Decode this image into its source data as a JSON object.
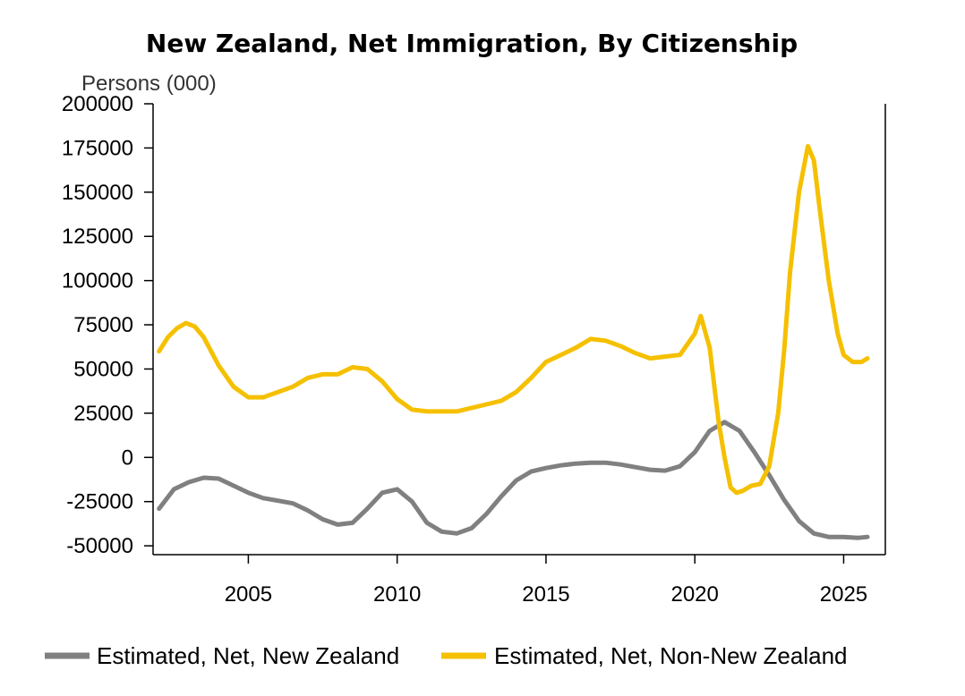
{
  "chart_data": {
    "type": "line",
    "title": "New Zealand, Net Immigration, By Citizenship",
    "ylabel": "Persons (000)",
    "xlabel": "",
    "ylim": [
      -55000,
      200000
    ],
    "xlim": [
      2001.8,
      2026.4
    ],
    "yticks": [
      200000,
      175000,
      150000,
      125000,
      100000,
      75000,
      50000,
      25000,
      0,
      -25000,
      -50000
    ],
    "ytick_labels": [
      "200000",
      "175000",
      "150000",
      "125000",
      "100000",
      "75000",
      "50000",
      "25000",
      "0",
      "-25000",
      "-50000"
    ],
    "xticks": [
      2005,
      2010,
      2015,
      2020,
      2025
    ],
    "xtick_labels": [
      "2005",
      "2010",
      "2015",
      "2020",
      "2025"
    ],
    "legend_position": "bottom",
    "series": [
      {
        "name": "Estimated, Net, New Zealand",
        "color": "#808080",
        "x": [
          2002.0,
          2002.5,
          2003.0,
          2003.5,
          2004.0,
          2004.5,
          2005.0,
          2005.5,
          2006.0,
          2006.5,
          2007.0,
          2007.5,
          2008.0,
          2008.5,
          2009.0,
          2009.5,
          2010.0,
          2010.5,
          2011.0,
          2011.5,
          2012.0,
          2012.5,
          2013.0,
          2013.5,
          2014.0,
          2014.5,
          2015.0,
          2015.5,
          2016.0,
          2016.5,
          2017.0,
          2017.5,
          2018.0,
          2018.5,
          2019.0,
          2019.5,
          2020.0,
          2020.5,
          2021.0,
          2021.5,
          2022.0,
          2022.5,
          2023.0,
          2023.5,
          2024.0,
          2024.5,
          2025.0,
          2025.5,
          2025.8
        ],
        "y": [
          -29000,
          -18000,
          -14000,
          -11500,
          -12000,
          -16000,
          -20000,
          -23000,
          -24500,
          -26000,
          -30000,
          -35000,
          -38000,
          -37000,
          -29000,
          -20000,
          -18000,
          -25000,
          -37000,
          -42000,
          -43000,
          -40000,
          -32000,
          -22000,
          -13000,
          -8000,
          -6000,
          -4500,
          -3500,
          -3000,
          -3000,
          -4000,
          -5500,
          -7000,
          -7500,
          -5000,
          3000,
          15000,
          20000,
          15000,
          3000,
          -10000,
          -24000,
          -36000,
          -43000,
          -45000,
          -45000,
          -45500,
          -45000
        ]
      },
      {
        "name": "Estimated, Net, Non-New Zealand",
        "color": "#f5c000",
        "x": [
          2002.0,
          2002.3,
          2002.6,
          2002.9,
          2003.2,
          2003.5,
          2004.0,
          2004.5,
          2005.0,
          2005.5,
          2006.0,
          2006.5,
          2007.0,
          2007.5,
          2008.0,
          2008.5,
          2009.0,
          2009.5,
          2010.0,
          2010.5,
          2011.0,
          2011.5,
          2012.0,
          2012.5,
          2013.0,
          2013.5,
          2014.0,
          2014.5,
          2015.0,
          2015.5,
          2016.0,
          2016.5,
          2017.0,
          2017.5,
          2018.0,
          2018.5,
          2019.0,
          2019.5,
          2020.0,
          2020.2,
          2020.5,
          2020.8,
          2021.0,
          2021.2,
          2021.4,
          2021.6,
          2021.9,
          2022.2,
          2022.5,
          2022.8,
          2023.0,
          2023.2,
          2023.5,
          2023.8,
          2024.0,
          2024.2,
          2024.5,
          2024.8,
          2025.0,
          2025.3,
          2025.6,
          2025.8
        ],
        "y": [
          60000,
          68000,
          73000,
          76000,
          74000,
          68000,
          52000,
          40000,
          34000,
          34000,
          37000,
          40000,
          45000,
          47000,
          47000,
          51000,
          50000,
          43000,
          33000,
          27000,
          26000,
          26000,
          26000,
          28000,
          30000,
          32000,
          37000,
          45000,
          54000,
          58000,
          62000,
          67000,
          66000,
          63000,
          59000,
          56000,
          57000,
          58000,
          70000,
          80000,
          62000,
          20000,
          0,
          -17000,
          -20000,
          -19000,
          -16000,
          -15000,
          -5000,
          25000,
          60000,
          105000,
          150000,
          176000,
          168000,
          140000,
          100000,
          70000,
          58000,
          54000,
          54000,
          56000
        ]
      }
    ]
  }
}
